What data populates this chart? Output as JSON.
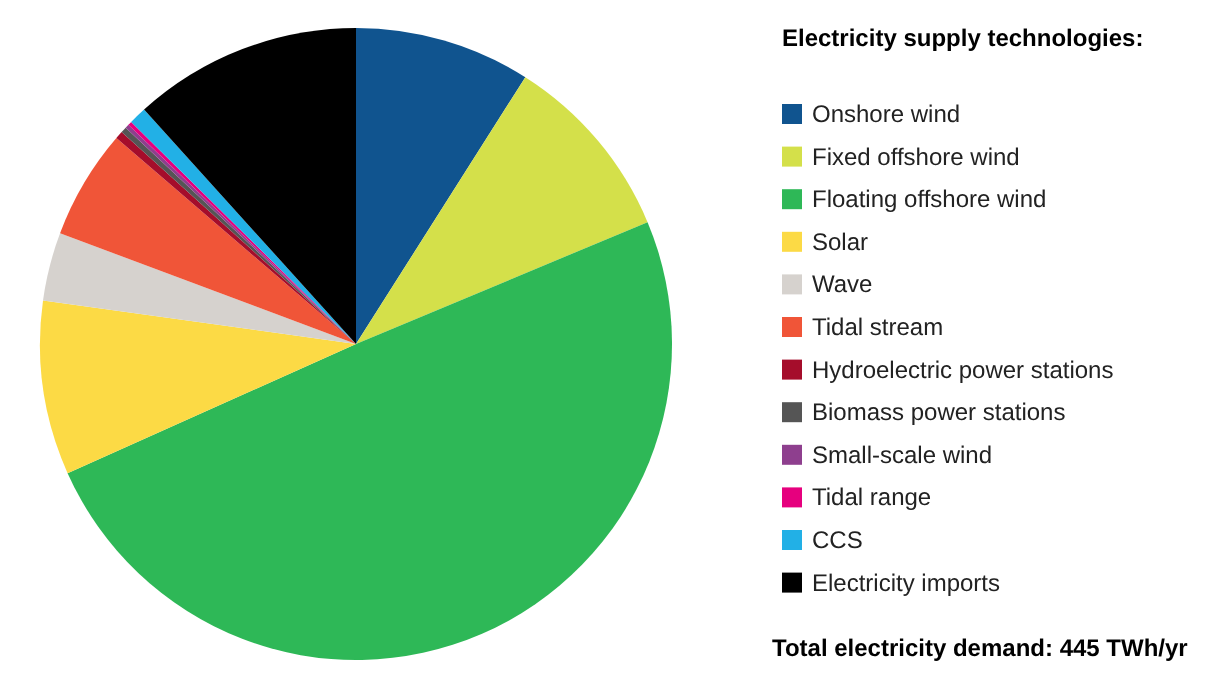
{
  "chart_data": {
    "type": "pie",
    "legend_title": "Electricity supply technologies:",
    "categories": [
      "Onshore wind",
      "Fixed offshore wind",
      "Floating offshore wind",
      "Solar",
      "Wave",
      "Tidal stream",
      "Hydroelectric power stations",
      "Biomass power stations",
      "Small-scale wind",
      "Tidal range",
      "CCS",
      "Electricity imports"
    ],
    "values": [
      9.0,
      9.7,
      49.6,
      8.9,
      3.5,
      5.6,
      0.4,
      0.3,
      0.2,
      0.2,
      0.9,
      11.7
    ],
    "colors": [
      "#10548f",
      "#d4e04a",
      "#2eb857",
      "#fcda45",
      "#d6d2ce",
      "#f05538",
      "#a50d2b",
      "#555555",
      "#8e3f8e",
      "#e6007e",
      "#22b0e6",
      "#000000"
    ],
    "legend": "right",
    "annotations": [
      "Total electricity demand: 445 TWh/yr"
    ]
  }
}
